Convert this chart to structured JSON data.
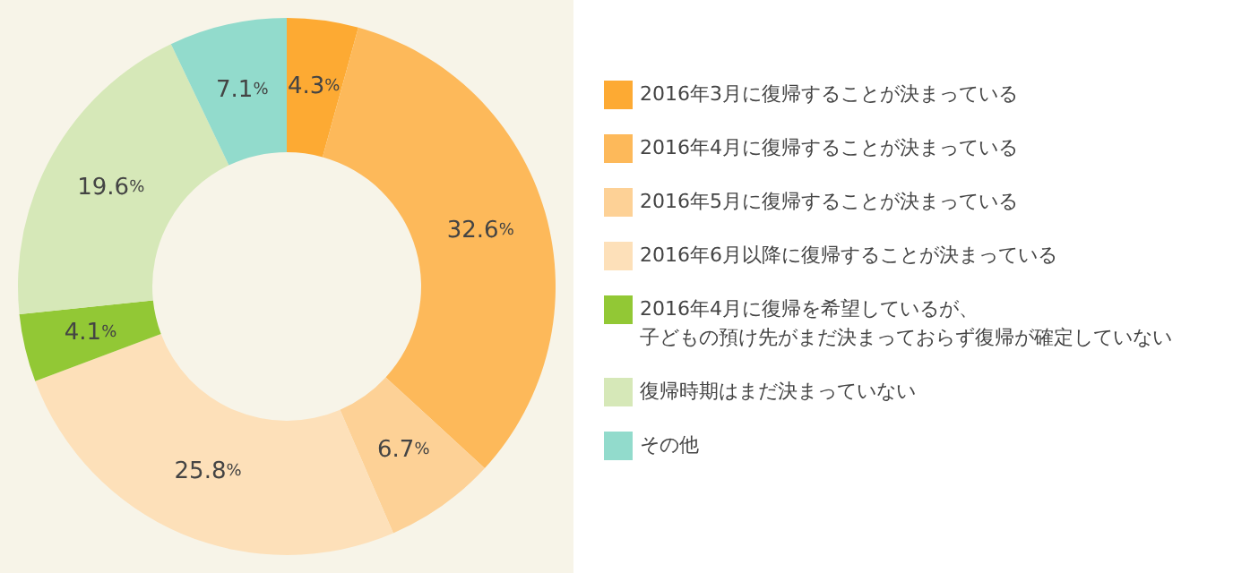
{
  "chart_data": {
    "type": "donut",
    "categories": [
      "2016年3月に復帰することが決まっている",
      "2016年4月に復帰することが決まっている",
      "2016年5月に復帰することが決まっている",
      "2016年6月以降に復帰することが決まっている",
      "2016年4月に復帰を希望しているが、子どもの預け先がまだ決まっておらず復帰が確定していない",
      "復帰時期はまだ決まっていない",
      "その他"
    ],
    "values": [
      4.3,
      32.6,
      6.7,
      25.8,
      4.1,
      19.6,
      7.1
    ],
    "colors": [
      "#fdaa33",
      "#fdb95a",
      "#fdd196",
      "#fde0b9",
      "#92c835",
      "#d6e8b8",
      "#92dbcc"
    ],
    "value_labels": [
      "4.3%",
      "32.6%",
      "6.7%",
      "25.8%",
      "4.1%",
      "19.6%",
      "7.1%"
    ],
    "legend": "right"
  }
}
